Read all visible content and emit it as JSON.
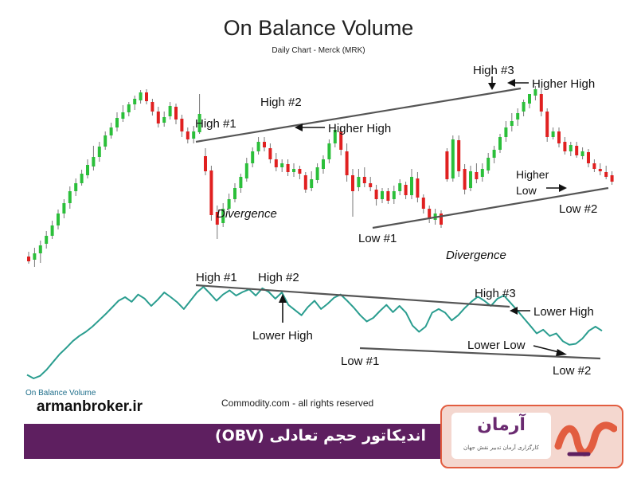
{
  "header": {
    "title": "On Balance Volume",
    "subtitle": "Daily Chart - Merck (MRK)"
  },
  "footer": {
    "site": "armanbroker.ir",
    "copyright": "Commodity.com - all rights reserved",
    "obv_label": "On Balance Volume"
  },
  "banner": {
    "text": "اندیکاتور حجم تعادلی (OBV)",
    "logo_name": "آرمان",
    "logo_slogan": "کارگزاری آرمان تدبیر نقش جهان"
  },
  "colors": {
    "up_candle": "#2bbf3a",
    "down_candle": "#e02020",
    "obv_line": "#2a9d8f",
    "trendline": "#555555",
    "banner": "#5e1f60",
    "logo_accent": "#e25d40"
  },
  "chart_data": [
    {
      "type": "candlestick",
      "name": "price",
      "title": "On Balance Volume",
      "subtitle": "Daily Chart - Merck (MRK)",
      "annotations": {
        "high1": "High #1",
        "high2": "High #2",
        "high3": "High #3",
        "higher_high_a": "Higher High",
        "higher_high_b": "Higher High",
        "higher_low_1": "Higher",
        "higher_low_2": "Low",
        "low1": "Low #1",
        "low2": "Low #2",
        "divergence_a": "Divergence",
        "divergence_b": "Divergence"
      },
      "candles": [
        [
          322,
          328,
          316,
          331
        ],
        [
          326,
          318,
          311,
          335
        ],
        [
          318,
          308,
          302,
          330
        ],
        [
          306,
          296,
          290,
          312
        ],
        [
          296,
          283,
          277,
          300
        ],
        [
          283,
          268,
          263,
          288
        ],
        [
          268,
          255,
          250,
          274
        ],
        [
          255,
          240,
          234,
          262
        ],
        [
          240,
          230,
          224,
          246
        ],
        [
          230,
          218,
          213,
          233
        ],
        [
          220,
          207,
          200,
          224
        ],
        [
          209,
          197,
          183,
          214
        ],
        [
          197,
          184,
          178,
          203
        ],
        [
          184,
          170,
          165,
          188
        ],
        [
          170,
          160,
          154,
          174
        ],
        [
          160,
          148,
          141,
          165
        ],
        [
          149,
          141,
          132,
          153
        ],
        [
          141,
          131,
          128,
          146
        ],
        [
          131,
          124,
          120,
          138
        ],
        [
          126,
          116,
          113,
          130
        ],
        [
          116,
          127,
          112,
          131
        ],
        [
          128,
          140,
          124,
          145
        ],
        [
          140,
          155,
          134,
          160
        ],
        [
          154,
          147,
          140,
          159
        ],
        [
          146,
          133,
          128,
          150
        ],
        [
          134,
          150,
          130,
          156
        ],
        [
          149,
          165,
          144,
          172
        ],
        [
          165,
          175,
          160,
          180
        ],
        [
          174,
          165,
          158,
          180
        ],
        [
          166,
          143,
          118,
          168
        ],
        [
          196,
          215,
          186,
          220
        ],
        [
          214,
          270,
          208,
          277
        ],
        [
          266,
          282,
          258,
          300
        ],
        [
          280,
          262,
          255,
          285
        ],
        [
          262,
          250,
          243,
          268
        ],
        [
          250,
          236,
          230,
          254
        ],
        [
          236,
          222,
          218,
          242
        ],
        [
          224,
          205,
          198,
          228
        ],
        [
          205,
          190,
          185,
          210
        ],
        [
          190,
          178,
          172,
          194
        ],
        [
          178,
          185,
          172,
          190
        ],
        [
          186,
          200,
          180,
          205
        ],
        [
          200,
          210,
          192,
          215
        ],
        [
          210,
          205,
          200,
          216
        ],
        [
          206,
          216,
          200,
          221
        ],
        [
          216,
          212,
          205,
          222
        ],
        [
          212,
          218,
          208,
          225
        ],
        [
          220,
          238,
          216,
          242
        ],
        [
          236,
          225,
          215,
          240
        ],
        [
          226,
          210,
          205,
          230
        ],
        [
          212,
          200,
          195,
          218
        ],
        [
          200,
          180,
          175,
          205
        ],
        [
          180,
          163,
          155,
          185
        ],
        [
          165,
          188,
          160,
          195
        ],
        [
          190,
          220,
          180,
          228
        ],
        [
          220,
          240,
          212,
          272
        ],
        [
          235,
          222,
          212,
          240
        ],
        [
          222,
          230,
          210,
          235
        ],
        [
          230,
          235,
          222,
          240
        ],
        [
          238,
          250,
          232,
          258
        ],
        [
          250,
          240,
          236,
          255
        ],
        [
          240,
          252,
          236,
          256
        ],
        [
          250,
          240,
          233,
          256
        ],
        [
          240,
          230,
          225,
          245
        ],
        [
          232,
          245,
          228,
          250
        ],
        [
          245,
          222,
          212,
          250
        ],
        [
          224,
          248,
          216,
          254
        ],
        [
          248,
          262,
          244,
          268
        ],
        [
          262,
          275,
          258,
          280
        ],
        [
          276,
          268,
          262,
          282
        ],
        [
          268,
          282,
          264,
          286
        ],
        [
          190,
          225,
          186,
          228
        ],
        [
          224,
          175,
          170,
          228
        ],
        [
          176,
          215,
          170,
          222
        ],
        [
          212,
          238,
          206,
          244
        ],
        [
          236,
          215,
          208,
          240
        ],
        [
          216,
          225,
          205,
          230
        ],
        [
          222,
          212,
          205,
          228
        ],
        [
          214,
          198,
          192,
          218
        ],
        [
          198,
          188,
          183,
          205
        ],
        [
          188,
          172,
          168,
          192
        ],
        [
          172,
          160,
          152,
          178
        ],
        [
          158,
          152,
          142,
          165
        ],
        [
          150,
          142,
          136,
          158
        ],
        [
          140,
          128,
          125,
          146
        ],
        [
          130,
          118,
          118,
          136
        ],
        [
          120,
          112,
          108,
          126
        ],
        [
          118,
          140,
          110,
          146
        ],
        [
          140,
          172,
          136,
          178
        ],
        [
          172,
          165,
          160,
          175
        ],
        [
          165,
          180,
          160,
          185
        ],
        [
          178,
          190,
          172,
          194
        ],
        [
          190,
          182,
          178,
          196
        ],
        [
          183,
          195,
          178,
          198
        ],
        [
          196,
          190,
          185,
          200
        ],
        [
          191,
          205,
          187,
          210
        ],
        [
          205,
          212,
          200,
          216
        ],
        [
          212,
          215,
          205,
          220
        ],
        [
          216,
          222,
          208,
          225
        ],
        [
          220,
          228,
          215,
          232
        ]
      ]
    },
    {
      "type": "line",
      "name": "obv",
      "label": "On Balance Volume",
      "annotations": {
        "high1": "High #1",
        "high2": "High #2",
        "high3": "High #3",
        "lower_high_a": "Lower High",
        "lower_high_b": "Lower High",
        "lower_low": "Lower Low",
        "low1": "Low #1",
        "low2": "Low #2"
      },
      "values": [
        85,
        78,
        83,
        95,
        110,
        125,
        137,
        150,
        160,
        168,
        178,
        190,
        202,
        215,
        228,
        235,
        226,
        240,
        232,
        218,
        230,
        244,
        235,
        225,
        212,
        228,
        244,
        255,
        242,
        228,
        240,
        248,
        238,
        245,
        250,
        238,
        252,
        245,
        232,
        244,
        220,
        210,
        200,
        216,
        228,
        212,
        222,
        234,
        240,
        228,
        215,
        200,
        188,
        195,
        208,
        220,
        206,
        218,
        205,
        180,
        168,
        178,
        205,
        212,
        205,
        190,
        200,
        214,
        226,
        236,
        228,
        218,
        232,
        238,
        224,
        210,
        195,
        180,
        165,
        172,
        160,
        165,
        150,
        143,
        145,
        155,
        170,
        178,
        170
      ]
    }
  ]
}
